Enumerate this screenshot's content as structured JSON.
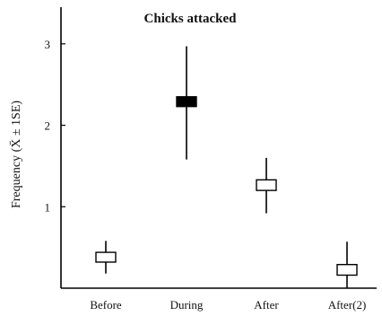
{
  "chart_data": {
    "type": "box",
    "title": "Chicks attacked",
    "ylabel": "Frequency (X̄ ± 1SE)",
    "xlabel": "",
    "categories": [
      "Before",
      "During",
      "After",
      "After(2)"
    ],
    "y_ticks": [
      1,
      2,
      3
    ],
    "ylim": [
      0,
      3.45
    ],
    "grid": false,
    "legend": "none",
    "series": [
      {
        "points": [
          {
            "category": "Before",
            "mean": 0.38,
            "se_low": 0.32,
            "se_high": 0.44,
            "min": 0.18,
            "max": 0.58,
            "filled": false
          },
          {
            "category": "During",
            "mean": 2.29,
            "se_low": 2.23,
            "se_high": 2.35,
            "min": 1.58,
            "max": 2.97,
            "filled": true
          },
          {
            "category": "After",
            "mean": 1.26,
            "se_low": 1.2,
            "se_high": 1.33,
            "min": 0.92,
            "max": 1.6,
            "filled": false
          },
          {
            "category": "After(2)",
            "mean": 0.24,
            "se_low": 0.16,
            "se_high": 0.29,
            "min": 0.0,
            "max": 0.57,
            "filled": false
          }
        ]
      }
    ]
  }
}
